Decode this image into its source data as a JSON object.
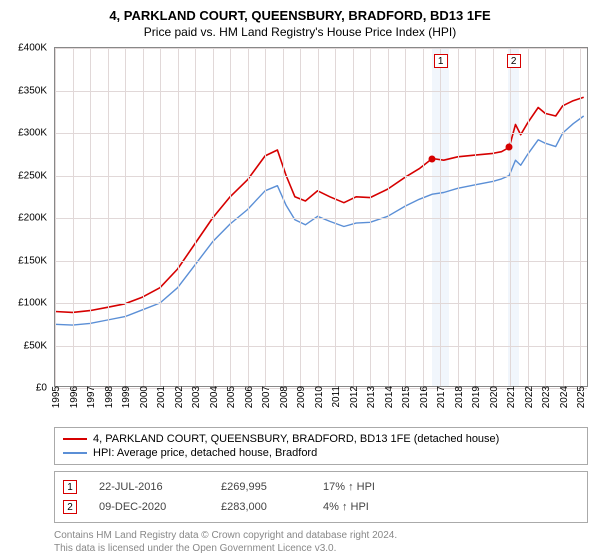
{
  "title": "4, PARKLAND COURT, QUEENSBURY, BRADFORD, BD13 1FE",
  "subtitle": "Price paid vs. HM Land Registry's House Price Index (HPI)",
  "chart": {
    "type": "line",
    "background_color": "#ffffff",
    "grid_color": "#e1d8d8",
    "border_color": "#888888",
    "x_range": [
      1995,
      2025.5
    ],
    "y_range": [
      0,
      400000
    ],
    "y_ticks": [
      0,
      50000,
      100000,
      150000,
      200000,
      250000,
      300000,
      350000,
      400000
    ],
    "y_tick_labels": [
      "£0",
      "£50K",
      "£100K",
      "£150K",
      "£200K",
      "£250K",
      "£300K",
      "£350K",
      "£400K"
    ],
    "x_ticks": [
      1995,
      1996,
      1997,
      1998,
      1999,
      2000,
      2001,
      2002,
      2003,
      2004,
      2005,
      2006,
      2007,
      2008,
      2009,
      2010,
      2011,
      2012,
      2013,
      2014,
      2015,
      2016,
      2017,
      2018,
      2019,
      2020,
      2021,
      2022,
      2023,
      2024,
      2025
    ],
    "shaded_bands": [
      {
        "start": 2016.55,
        "end": 2017.5,
        "label": "1",
        "label_color": "#d60000"
      },
      {
        "start": 2020.9,
        "end": 2021.5,
        "label": "2",
        "label_color": "#d60000"
      }
    ],
    "series": [
      {
        "name": "property",
        "color": "#d60000",
        "width": 1.6,
        "points": [
          [
            1995,
            90000
          ],
          [
            1996,
            89000
          ],
          [
            1997,
            91000
          ],
          [
            1998,
            95000
          ],
          [
            1999,
            99000
          ],
          [
            2000,
            107000
          ],
          [
            2001,
            118000
          ],
          [
            2002,
            140000
          ],
          [
            2003,
            170000
          ],
          [
            2004,
            200000
          ],
          [
            2005,
            225000
          ],
          [
            2006,
            245000
          ],
          [
            2007,
            273000
          ],
          [
            2007.7,
            280000
          ],
          [
            2008.2,
            250000
          ],
          [
            2008.7,
            225000
          ],
          [
            2009.3,
            220000
          ],
          [
            2010,
            232000
          ],
          [
            2010.7,
            225000
          ],
          [
            2011.5,
            218000
          ],
          [
            2012.2,
            225000
          ],
          [
            2013,
            224000
          ],
          [
            2014,
            234000
          ],
          [
            2015,
            248000
          ],
          [
            2015.8,
            258000
          ],
          [
            2016.55,
            269995
          ],
          [
            2017.2,
            268000
          ],
          [
            2018,
            272000
          ],
          [
            2019,
            274000
          ],
          [
            2020,
            276000
          ],
          [
            2020.5,
            278000
          ],
          [
            2020.94,
            283000
          ],
          [
            2021.3,
            310000
          ],
          [
            2021.6,
            298000
          ],
          [
            2022,
            312000
          ],
          [
            2022.6,
            330000
          ],
          [
            2023,
            323000
          ],
          [
            2023.6,
            320000
          ],
          [
            2024,
            332000
          ],
          [
            2024.6,
            338000
          ],
          [
            2025.2,
            342000
          ]
        ]
      },
      {
        "name": "hpi",
        "color": "#5b8fd6",
        "width": 1.4,
        "points": [
          [
            1995,
            75000
          ],
          [
            1996,
            74000
          ],
          [
            1997,
            76000
          ],
          [
            1998,
            80000
          ],
          [
            1999,
            84000
          ],
          [
            2000,
            92000
          ],
          [
            2001,
            100000
          ],
          [
            2002,
            118000
          ],
          [
            2003,
            145000
          ],
          [
            2004,
            172000
          ],
          [
            2005,
            193000
          ],
          [
            2006,
            210000
          ],
          [
            2007,
            232000
          ],
          [
            2007.7,
            238000
          ],
          [
            2008.2,
            215000
          ],
          [
            2008.7,
            198000
          ],
          [
            2009.3,
            192000
          ],
          [
            2010,
            202000
          ],
          [
            2010.7,
            196000
          ],
          [
            2011.5,
            190000
          ],
          [
            2012.2,
            194000
          ],
          [
            2013,
            195000
          ],
          [
            2014,
            202000
          ],
          [
            2015,
            214000
          ],
          [
            2015.8,
            222000
          ],
          [
            2016.55,
            228000
          ],
          [
            2017.2,
            230000
          ],
          [
            2018,
            235000
          ],
          [
            2019,
            239000
          ],
          [
            2020,
            243000
          ],
          [
            2020.5,
            246000
          ],
          [
            2020.94,
            250000
          ],
          [
            2021.3,
            268000
          ],
          [
            2021.6,
            262000
          ],
          [
            2022,
            275000
          ],
          [
            2022.6,
            292000
          ],
          [
            2023,
            288000
          ],
          [
            2023.6,
            284000
          ],
          [
            2024,
            300000
          ],
          [
            2024.6,
            311000
          ],
          [
            2025.2,
            320000
          ]
        ]
      }
    ],
    "sale_markers": [
      {
        "x": 2016.55,
        "y": 269995,
        "color": "#d60000"
      },
      {
        "x": 2020.94,
        "y": 283000,
        "color": "#d60000"
      }
    ]
  },
  "legend": {
    "items": [
      {
        "color": "#d60000",
        "label": "4, PARKLAND COURT, QUEENSBURY, BRADFORD, BD13 1FE (detached house)"
      },
      {
        "color": "#5b8fd6",
        "label": "HPI: Average price, detached house, Bradford"
      }
    ]
  },
  "sales": [
    {
      "marker": "1",
      "marker_color": "#d60000",
      "date": "22-JUL-2016",
      "price": "£269,995",
      "hpi": "17% ↑ HPI"
    },
    {
      "marker": "2",
      "marker_color": "#d60000",
      "date": "09-DEC-2020",
      "price": "£283,000",
      "hpi": "4% ↑ HPI"
    }
  ],
  "footnote_line1": "Contains HM Land Registry data © Crown copyright and database right 2024.",
  "footnote_line2": "This data is licensed under the Open Government Licence v3.0."
}
